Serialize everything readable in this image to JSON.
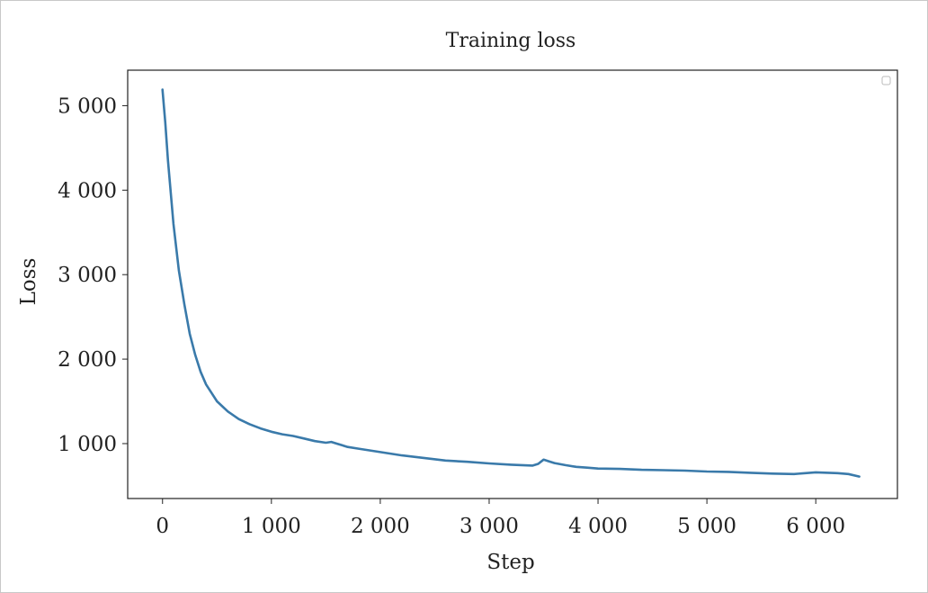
{
  "chart_data": {
    "type": "line",
    "title": "Training loss",
    "xlabel": "Step",
    "ylabel": "Loss",
    "xlim": [
      -320,
      6750
    ],
    "ylim": [
      350,
      5420
    ],
    "xticks": [
      0,
      1000,
      2000,
      3000,
      4000,
      5000,
      6000
    ],
    "xtick_labels": [
      "0",
      "1 000",
      "2 000",
      "3 000",
      "4 000",
      "5 000",
      "6 000"
    ],
    "yticks": [
      1000,
      2000,
      3000,
      4000,
      5000
    ],
    "ytick_labels": [
      "1 000",
      "2 000",
      "3 000",
      "4 000",
      "5 000"
    ],
    "grid": false,
    "legend": "top-right (empty)",
    "line_color": "#3a7aaa",
    "series": [
      {
        "x": [
          0,
          25,
          50,
          100,
          150,
          200,
          250,
          300,
          350,
          400,
          450,
          500,
          600,
          700,
          800,
          900,
          1000,
          1100,
          1200,
          1300,
          1400,
          1500,
          1550,
          1600,
          1700,
          1800,
          1900,
          2000,
          2200,
          2400,
          2600,
          2800,
          3000,
          3200,
          3400,
          3450,
          3500,
          3550,
          3600,
          3700,
          3800,
          3900,
          4000,
          4200,
          4400,
          4600,
          4800,
          5000,
          5200,
          5400,
          5600,
          5800,
          6000,
          6200,
          6300,
          6400
        ],
        "y": [
          5190,
          4800,
          4350,
          3600,
          3050,
          2650,
          2300,
          2050,
          1850,
          1700,
          1600,
          1500,
          1380,
          1290,
          1230,
          1180,
          1140,
          1110,
          1090,
          1060,
          1030,
          1010,
          1020,
          1000,
          960,
          940,
          920,
          900,
          860,
          830,
          800,
          785,
          765,
          750,
          740,
          760,
          810,
          790,
          770,
          745,
          725,
          715,
          705,
          700,
          690,
          685,
          680,
          670,
          665,
          655,
          645,
          640,
          660,
          650,
          640,
          610
        ]
      }
    ]
  }
}
